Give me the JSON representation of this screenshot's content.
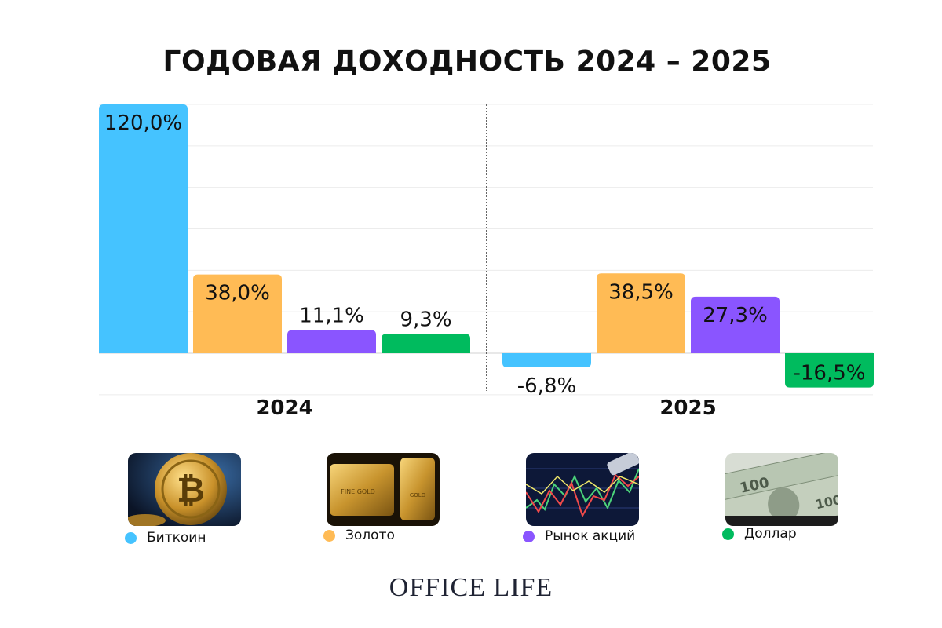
{
  "title": "ГОДОВАЯ ДОХОДНОСТЬ 2024 – 2025",
  "brand": "OFFICE LIFE",
  "colors": {
    "bitcoin": "#45c3ff",
    "gold": "#ffbb55",
    "stocks": "#8a55ff",
    "dollar": "#00bb5e",
    "grid": "#ececec",
    "separator": "#333333"
  },
  "legend": [
    {
      "label": "Биткоин",
      "icon": "bitcoin-photo-icon",
      "color": "#45c3ff"
    },
    {
      "label": "Золото",
      "icon": "gold-bars-photo-icon",
      "color": "#ffbb55"
    },
    {
      "label": "Рынок акций",
      "icon": "stock-chart-photo-icon",
      "color": "#8a55ff"
    },
    {
      "label": "Доллар",
      "icon": "dollar-bills-photo-icon",
      "color": "#00bb5e"
    }
  ],
  "chart_data": {
    "type": "bar",
    "title": "ГОДОВАЯ ДОХОДНОСТЬ 2024 – 2025",
    "categories": [
      "2024",
      "2025"
    ],
    "series": [
      {
        "name": "Биткоин",
        "values": [
          120.0,
          -6.8
        ],
        "labels": [
          "120,0%",
          "-6,8%"
        ],
        "color": "#45c3ff"
      },
      {
        "name": "Золото",
        "values": [
          38.0,
          38.5
        ],
        "labels": [
          "38,0%",
          "38,5%"
        ],
        "color": "#ffbb55"
      },
      {
        "name": "Рынок акций",
        "values": [
          11.1,
          27.3
        ],
        "labels": [
          "11,1%",
          "27,3%"
        ],
        "color": "#8a55ff"
      },
      {
        "name": "Доллар",
        "values": [
          9.3,
          -16.5
        ],
        "labels": [
          "9,3%",
          "-16,5%"
        ],
        "color": "#00bb5e"
      }
    ],
    "ylim": [
      -20,
      120
    ],
    "grid": true,
    "legend": "bottom"
  }
}
